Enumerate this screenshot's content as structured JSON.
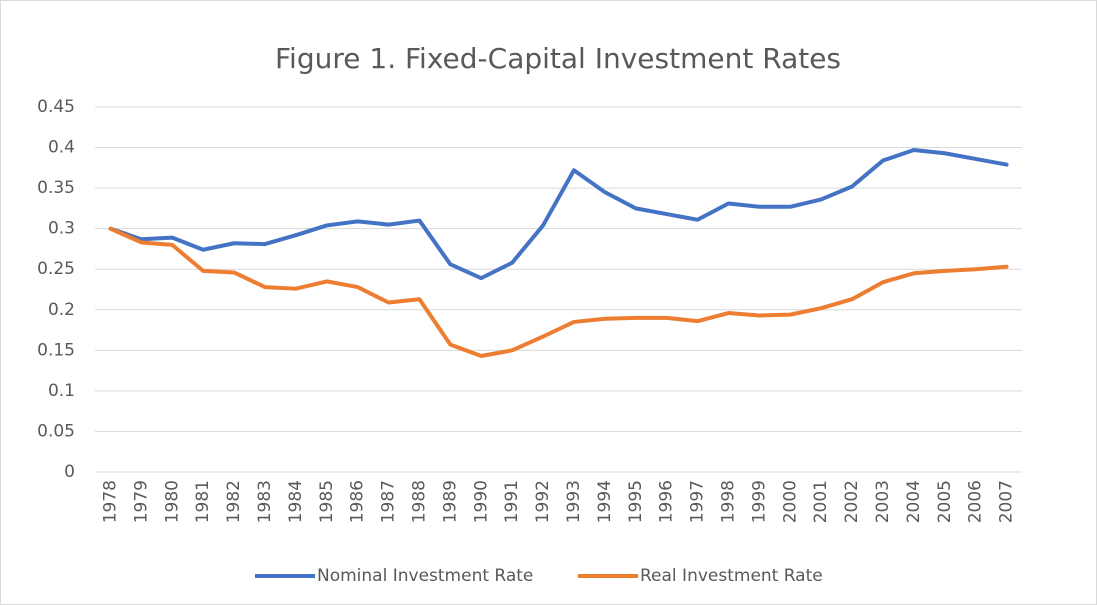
{
  "chart_data": {
    "type": "line",
    "title": "Figure 1. Fixed-Capital Investment Rates",
    "categories": [
      "1978",
      "1979",
      "1980",
      "1981",
      "1982",
      "1983",
      "1984",
      "1985",
      "1986",
      "1987",
      "1988",
      "1989",
      "1990",
      "1991",
      "1992",
      "1993",
      "1994",
      "1995",
      "1996",
      "1997",
      "1998",
      "1999",
      "2000",
      "2001",
      "2002",
      "2003",
      "2004",
      "2005",
      "2006",
      "2007"
    ],
    "series": [
      {
        "name": "Nominal Investment Rate",
        "color": "#4472c4",
        "values": [
          0.3,
          0.287,
          0.289,
          0.274,
          0.282,
          0.281,
          0.292,
          0.304,
          0.309,
          0.305,
          0.31,
          0.256,
          0.239,
          0.258,
          0.304,
          0.372,
          0.345,
          0.325,
          0.318,
          0.311,
          0.331,
          0.327,
          0.327,
          0.336,
          0.352,
          0.384,
          0.397,
          0.393,
          0.386,
          0.379
        ]
      },
      {
        "name": "Real Investment Rate",
        "color": "#ed7d31",
        "values": [
          0.3,
          0.283,
          0.28,
          0.248,
          0.246,
          0.228,
          0.226,
          0.235,
          0.228,
          0.209,
          0.213,
          0.157,
          0.143,
          0.15,
          0.167,
          0.185,
          0.189,
          0.19,
          0.19,
          0.186,
          0.196,
          0.193,
          0.194,
          0.202,
          0.213,
          0.234,
          0.245,
          0.248,
          0.25,
          0.253
        ]
      }
    ],
    "ylim": [
      0,
      0.45
    ],
    "yticks": [
      0,
      0.05,
      0.1,
      0.15,
      0.2,
      0.25,
      0.3,
      0.35,
      0.4,
      0.45
    ],
    "grid": true,
    "legend": "bottom"
  }
}
